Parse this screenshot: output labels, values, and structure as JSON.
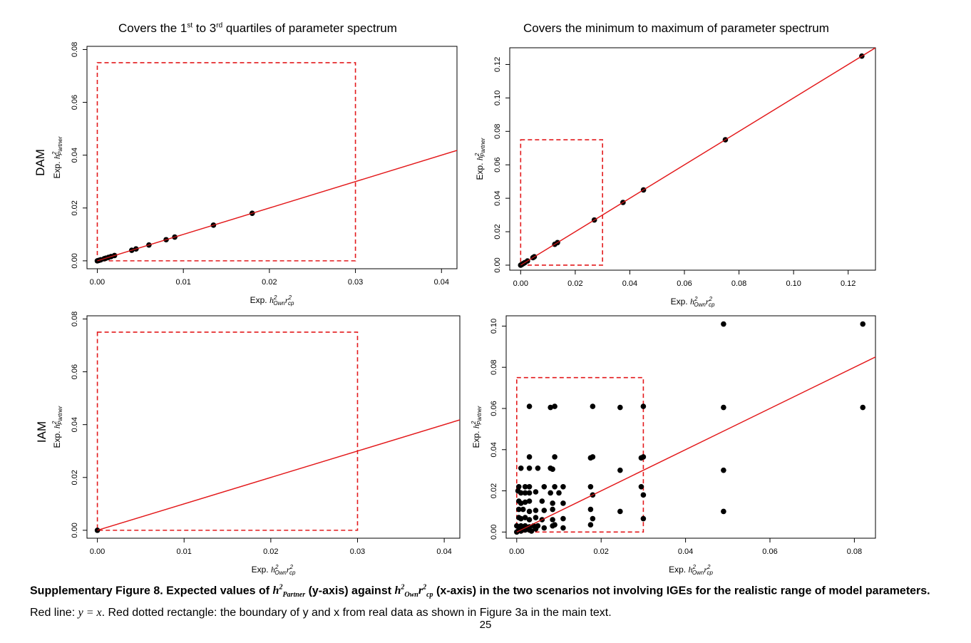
{
  "column_titles": {
    "left": {
      "pre": "Covers the 1",
      "sup1": "st",
      "mid": " to 3",
      "sup2": "rd",
      "post": " quartiles of parameter spectrum"
    },
    "right": "Covers the minimum to maximum of parameter spectrum"
  },
  "row_labels": {
    "top": "DAM",
    "bottom": "IAM"
  },
  "axis_labels": {
    "y_prefix": "Exp. ",
    "y_h": "h",
    "y_sup": "2",
    "y_sub": "Partner",
    "x_prefix": "Exp. ",
    "x_h": "h",
    "x_sup": "2",
    "x_sub": "Own",
    "x_r": "r",
    "x_rsup": "2",
    "x_rsub": "cp"
  },
  "caption": {
    "bold1": "Supplementary Figure 8. Expected values of ",
    "bold2": " (y-axis) against ",
    "bold3": " (x-axis) in the two scenarios not involving IGEs for the realistic range of model parameters.",
    "rest1": " Red line: ",
    "eq": "y = x",
    "rest2": ". Red dotted rectangle: the boundary of y and x from real data as shown in Figure 3a in the main text."
  },
  "page_number": "25",
  "colors": {
    "line": "#e31a1c",
    "rect": "#e31a1c",
    "points": "#000000"
  },
  "chart_data": [
    {
      "type": "scatter",
      "panel": "DAM-quartiles",
      "xlim": [
        -0.0012,
        0.0418
      ],
      "ylim": [
        -0.003,
        0.0812
      ],
      "xticks": [
        0.0,
        0.01,
        0.02,
        0.03,
        0.04
      ],
      "xtick_labels": [
        "0.00",
        "0.01",
        "0.02",
        "0.03",
        "0.04"
      ],
      "yticks": [
        0.0,
        0.02,
        0.04,
        0.06,
        0.08
      ],
      "ytick_labels": [
        "0.00",
        "0.02",
        "0.04",
        "0.06",
        "0.08"
      ],
      "ref_line": "y = x",
      "rect": {
        "x": [
          0,
          0.03
        ],
        "y": [
          0,
          0.075
        ]
      },
      "points": [
        [
          0,
          0
        ],
        [
          0.0002,
          0.0002
        ],
        [
          0.0004,
          0.0004
        ],
        [
          0.0008,
          0.0008
        ],
        [
          0.001,
          0.001
        ],
        [
          0.0013,
          0.0013
        ],
        [
          0.0016,
          0.0016
        ],
        [
          0.002,
          0.002
        ],
        [
          0.004,
          0.004
        ],
        [
          0.0045,
          0.0045
        ],
        [
          0.006,
          0.006
        ],
        [
          0.008,
          0.008
        ],
        [
          0.009,
          0.009
        ],
        [
          0.0135,
          0.0135
        ],
        [
          0.018,
          0.018
        ]
      ]
    },
    {
      "type": "scatter",
      "panel": "DAM-minmax",
      "xlim": [
        -0.004,
        0.13
      ],
      "ylim": [
        -0.003,
        0.13
      ],
      "xticks": [
        0.0,
        0.02,
        0.04,
        0.06,
        0.08,
        0.1,
        0.12
      ],
      "xtick_labels": [
        "0.00",
        "0.02",
        "0.04",
        "0.06",
        "0.08",
        "0.10",
        "0.12"
      ],
      "yticks": [
        0.0,
        0.02,
        0.04,
        0.06,
        0.08,
        0.1,
        0.12
      ],
      "ytick_labels": [
        "0.00",
        "0.02",
        "0.04",
        "0.06",
        "0.08",
        "0.10",
        "0.12"
      ],
      "ref_line": "y = x",
      "rect": {
        "x": [
          0,
          0.03
        ],
        "y": [
          0,
          0.075
        ]
      },
      "points": [
        [
          0,
          0
        ],
        [
          0.0005,
          0.0005
        ],
        [
          0.001,
          0.001
        ],
        [
          0.0015,
          0.0015
        ],
        [
          0.0025,
          0.0025
        ],
        [
          0.0045,
          0.0045
        ],
        [
          0.005,
          0.005
        ],
        [
          0.0125,
          0.0125
        ],
        [
          0.0135,
          0.0135
        ],
        [
          0.027,
          0.027
        ],
        [
          0.0375,
          0.0375
        ],
        [
          0.045,
          0.045
        ],
        [
          0.075,
          0.075
        ],
        [
          0.125,
          0.125
        ]
      ]
    },
    {
      "type": "scatter",
      "panel": "IAM-quartiles",
      "xlim": [
        -0.0012,
        0.0418
      ],
      "ylim": [
        -0.003,
        0.0812
      ],
      "xticks": [
        0.0,
        0.01,
        0.02,
        0.03,
        0.04
      ],
      "xtick_labels": [
        "0.00",
        "0.01",
        "0.02",
        "0.03",
        "0.04"
      ],
      "yticks": [
        0.0,
        0.02,
        0.04,
        0.06,
        0.08
      ],
      "ytick_labels": [
        "0.00",
        "0.02",
        "0.04",
        "0.06",
        "0.08"
      ],
      "ref_line": "y = x",
      "rect": {
        "x": [
          0,
          0.03
        ],
        "y": [
          0,
          0.075
        ]
      },
      "points": [
        [
          0,
          0
        ]
      ]
    },
    {
      "type": "scatter",
      "panel": "IAM-minmax",
      "xlim": [
        -0.0025,
        0.085
      ],
      "ylim": [
        -0.003,
        0.105
      ],
      "xticks": [
        0.0,
        0.02,
        0.04,
        0.06,
        0.08
      ],
      "xtick_labels": [
        "0.00",
        "0.02",
        "0.04",
        "0.06",
        "0.08"
      ],
      "yticks": [
        0.0,
        0.02,
        0.04,
        0.06,
        0.08,
        0.1
      ],
      "ytick_labels": [
        "0.00",
        "0.02",
        "0.04",
        "0.06",
        "0.08",
        "0.10"
      ],
      "ref_line": "y = x",
      "rect": {
        "x": [
          0,
          0.03
        ],
        "y": [
          0,
          0.075
        ]
      },
      "points": [
        [
          0.049,
          0.101
        ],
        [
          0.082,
          0.101
        ],
        [
          0.003,
          0.061
        ],
        [
          0.008,
          0.0605
        ],
        [
          0.009,
          0.061
        ],
        [
          0.018,
          0.061
        ],
        [
          0.0245,
          0.0605
        ],
        [
          0.03,
          0.061
        ],
        [
          0.049,
          0.0605
        ],
        [
          0.082,
          0.0605
        ],
        [
          0.003,
          0.0365
        ],
        [
          0.009,
          0.0365
        ],
        [
          0.0175,
          0.036
        ],
        [
          0.018,
          0.0365
        ],
        [
          0.0295,
          0.036
        ],
        [
          0.03,
          0.0365
        ],
        [
          0.001,
          0.031
        ],
        [
          0.003,
          0.031
        ],
        [
          0.005,
          0.031
        ],
        [
          0.008,
          0.031
        ],
        [
          0.0085,
          0.0305
        ],
        [
          0.0245,
          0.03
        ],
        [
          0.049,
          0.03
        ],
        [
          0.0005,
          0.022
        ],
        [
          0.002,
          0.022
        ],
        [
          0.003,
          0.022
        ],
        [
          0.0065,
          0.022
        ],
        [
          0.009,
          0.022
        ],
        [
          0.011,
          0.022
        ],
        [
          0.0175,
          0.022
        ],
        [
          0.0295,
          0.022
        ],
        [
          0.0003,
          0.02
        ],
        [
          0.001,
          0.019
        ],
        [
          0.002,
          0.019
        ],
        [
          0.003,
          0.019
        ],
        [
          0.0045,
          0.0195
        ],
        [
          0.008,
          0.019
        ],
        [
          0.01,
          0.019
        ],
        [
          0.018,
          0.018
        ],
        [
          0.03,
          0.018
        ],
        [
          0.0005,
          0.015
        ],
        [
          0.001,
          0.014
        ],
        [
          0.002,
          0.0145
        ],
        [
          0.003,
          0.015
        ],
        [
          0.006,
          0.015
        ],
        [
          0.0085,
          0.014
        ],
        [
          0.011,
          0.014
        ],
        [
          0.0005,
          0.011
        ],
        [
          0.0015,
          0.011
        ],
        [
          0.003,
          0.01
        ],
        [
          0.0045,
          0.0105
        ],
        [
          0.0065,
          0.0105
        ],
        [
          0.0085,
          0.011
        ],
        [
          0.0175,
          0.011
        ],
        [
          0.0245,
          0.01
        ],
        [
          0.049,
          0.01
        ],
        [
          0.0005,
          0.007
        ],
        [
          0.001,
          0.0065
        ],
        [
          0.002,
          0.007
        ],
        [
          0.003,
          0.006
        ],
        [
          0.0045,
          0.007
        ],
        [
          0.006,
          0.006
        ],
        [
          0.0085,
          0.006
        ],
        [
          0.011,
          0.0065
        ],
        [
          0.018,
          0.0065
        ],
        [
          0.03,
          0.0065
        ],
        [
          0,
          0.003
        ],
        [
          0.001,
          0.003
        ],
        [
          0.002,
          0.003
        ],
        [
          0.003,
          0.0025
        ],
        [
          0.004,
          0.003
        ],
        [
          0.005,
          0.003
        ],
        [
          0.0065,
          0.002
        ],
        [
          0.0085,
          0.003
        ],
        [
          0.009,
          0.0035
        ],
        [
          0.011,
          0.002
        ],
        [
          0.0175,
          0.0035
        ],
        [
          0,
          0
        ],
        [
          0.0005,
          0.001
        ],
        [
          0.001,
          0.0005
        ],
        [
          0.0015,
          0.0015
        ],
        [
          0.002,
          0.001
        ],
        [
          0.003,
          0.001
        ],
        [
          0.0035,
          0.0005
        ],
        [
          0.0045,
          0.0015
        ]
      ]
    }
  ]
}
